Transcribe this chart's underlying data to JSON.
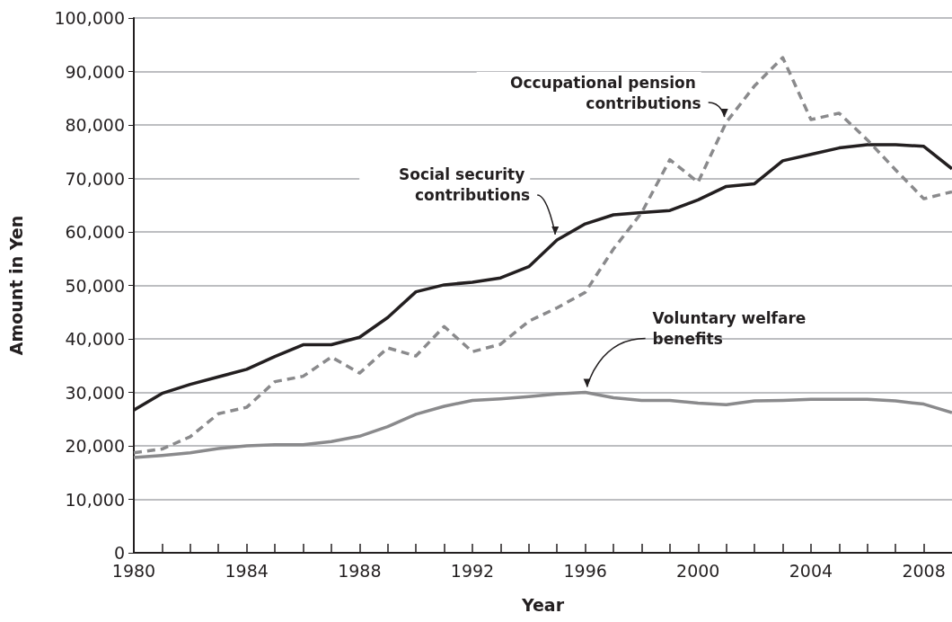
{
  "chart_data": {
    "type": "line",
    "xlabel": "Year",
    "ylabel": "Amount in Yen",
    "x": [
      1980,
      1981,
      1982,
      1983,
      1984,
      1985,
      1986,
      1987,
      1988,
      1989,
      1990,
      1991,
      1992,
      1993,
      1994,
      1995,
      1996,
      1997,
      1998,
      1999,
      2000,
      2001,
      2002,
      2003,
      2004,
      2005,
      2006,
      2007,
      2008,
      2009
    ],
    "series": [
      {
        "name": "Social security contributions",
        "color": "#231f20",
        "line_style": "solid",
        "values": [
          26700,
          29800,
          31500,
          32900,
          34300,
          36700,
          38900,
          38900,
          40300,
          44000,
          48800,
          50100,
          50600,
          51400,
          53500,
          58500,
          61500,
          63200,
          63600,
          64000,
          66000,
          68500,
          69000,
          73300,
          74500,
          75700,
          76300,
          76300,
          76000,
          71800
        ]
      },
      {
        "name": "Occupational pension contributions",
        "color": "#8a8a8c",
        "line_style": "dashed",
        "values": [
          18700,
          19400,
          21700,
          26000,
          27200,
          32000,
          33000,
          36600,
          33600,
          38300,
          36800,
          42300,
          37600,
          39000,
          43300,
          45800,
          48700,
          56800,
          63600,
          73500,
          69300,
          80500,
          87300,
          92600,
          81000,
          82200,
          77200,
          71600,
          66200,
          67500
        ]
      },
      {
        "name": "Voluntary welfare benefits",
        "color": "#8a8a8c",
        "line_style": "solid",
        "values": [
          17800,
          18200,
          18700,
          19500,
          20000,
          20200,
          20200,
          20800,
          21800,
          23600,
          25900,
          27400,
          28500,
          28800,
          29200,
          29700,
          30000,
          29000,
          28500,
          28500,
          28000,
          27700,
          28400,
          28500,
          28700,
          28700,
          28700,
          28400,
          27800,
          26200
        ]
      }
    ],
    "xlim": [
      1980,
      2009
    ],
    "xticks": [
      1980,
      {
        "value": 1981,
        "label": null
      },
      {
        "value": 1982,
        "label": null
      },
      {
        "value": 1983,
        "label": null
      },
      1984,
      {
        "value": 1985,
        "label": null
      },
      {
        "value": 1986,
        "label": null
      },
      {
        "value": 1987,
        "label": null
      },
      1988,
      {
        "value": 1989,
        "label": null
      },
      {
        "value": 1990,
        "label": null
      },
      {
        "value": 1991,
        "label": null
      },
      1992,
      {
        "value": 1993,
        "label": null
      },
      {
        "value": 1994,
        "label": null
      },
      {
        "value": 1995,
        "label": null
      },
      1996,
      {
        "value": 1997,
        "label": null
      },
      {
        "value": 1998,
        "label": null
      },
      {
        "value": 1999,
        "label": null
      },
      2000,
      {
        "value": 2001,
        "label": null
      },
      {
        "value": 2002,
        "label": null
      },
      {
        "value": 2003,
        "label": null
      },
      2004,
      {
        "value": 2005,
        "label": null
      },
      {
        "value": 2006,
        "label": null
      },
      {
        "value": 2007,
        "label": null
      },
      2008
    ],
    "ylim": [
      0,
      100000
    ],
    "yticks": [
      0,
      {
        "value": 10000,
        "label": "10,000"
      },
      {
        "value": 20000,
        "label": "20,000"
      },
      {
        "value": 30000,
        "label": "30,000"
      },
      {
        "value": 40000,
        "label": "40,000"
      },
      {
        "value": 50000,
        "label": "50,000"
      },
      {
        "value": 60000,
        "label": "60,000"
      },
      {
        "value": 70000,
        "label": "70,000"
      },
      {
        "value": 80000,
        "label": "80,000"
      },
      {
        "value": 90000,
        "label": "90,000"
      },
      {
        "value": 100000,
        "label": "100,000"
      }
    ],
    "grid": "y",
    "legend": false,
    "marker": "none"
  }
}
